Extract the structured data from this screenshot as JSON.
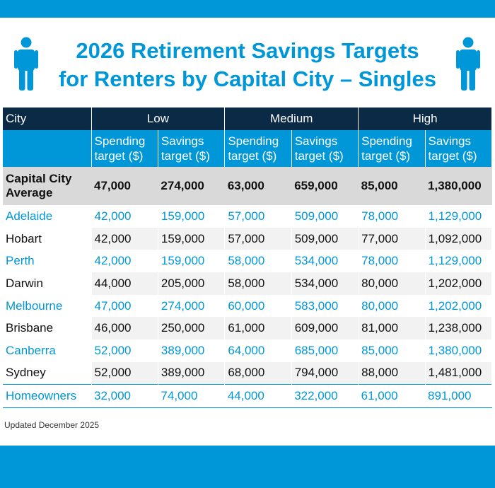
{
  "title": {
    "line1": "2026 Retirement Savings Targets",
    "line2": "for Renters by Capital City – Singles"
  },
  "colors": {
    "brand_blue": "#0097d8",
    "header_navy": "#0a2a45",
    "average_gray": "#d9d9d9"
  },
  "icons": {
    "left": "person-icon",
    "right": "person-icon"
  },
  "table": {
    "city_header": "City",
    "groups": [
      "Low",
      "Medium",
      "High"
    ],
    "subheaders": [
      {
        "line1": "Spending",
        "line2": "target ($)"
      },
      {
        "line1": "Savings",
        "line2": "target ($)"
      },
      {
        "line1": "Spending",
        "line2": "target ($)"
      },
      {
        "line1": "Savings",
        "line2": "target ($)"
      },
      {
        "line1": "Spending",
        "line2": "target ($)"
      },
      {
        "line1": "Savings",
        "line2": "target ($)"
      }
    ],
    "average": {
      "label_line1": "Capital City",
      "label_line2": "Average",
      "values": [
        "47,000",
        "274,000",
        "63,000",
        "659,000",
        "85,000",
        "1,380,000"
      ]
    },
    "rows": [
      {
        "city": "Adelaide",
        "values": [
          "42,000",
          "159,000",
          "57,000",
          "509,000",
          "78,000",
          "1,129,000"
        ]
      },
      {
        "city": "Hobart",
        "values": [
          "42,000",
          "159,000",
          "57,000",
          "509,000",
          "77,000",
          "1,092,000"
        ]
      },
      {
        "city": "Perth",
        "values": [
          "42,000",
          "159,000",
          "58,000",
          "534,000",
          "78,000",
          "1,129,000"
        ]
      },
      {
        "city": "Darwin",
        "values": [
          "44,000",
          "205,000",
          "58,000",
          "534,000",
          "80,000",
          "1,202,000"
        ]
      },
      {
        "city": "Melbourne",
        "values": [
          "47,000",
          "274,000",
          "60,000",
          "583,000",
          "80,000",
          "1,202,000"
        ]
      },
      {
        "city": "Brisbane",
        "values": [
          "46,000",
          "250,000",
          "61,000",
          "609,000",
          "81,000",
          "1,238,000"
        ]
      },
      {
        "city": "Canberra",
        "values": [
          "52,000",
          "389,000",
          "64,000",
          "685,000",
          "85,000",
          "1,380,000"
        ]
      },
      {
        "city": "Sydney",
        "values": [
          "52,000",
          "389,000",
          "68,000",
          "794,000",
          "88,000",
          "1,481,000"
        ]
      }
    ],
    "homeowners": {
      "label": "Homeowners",
      "values": [
        "32,000",
        "74,000",
        "44,000",
        "322,000",
        "61,000",
        "891,000"
      ]
    }
  },
  "footnote": "Updated December 2025"
}
